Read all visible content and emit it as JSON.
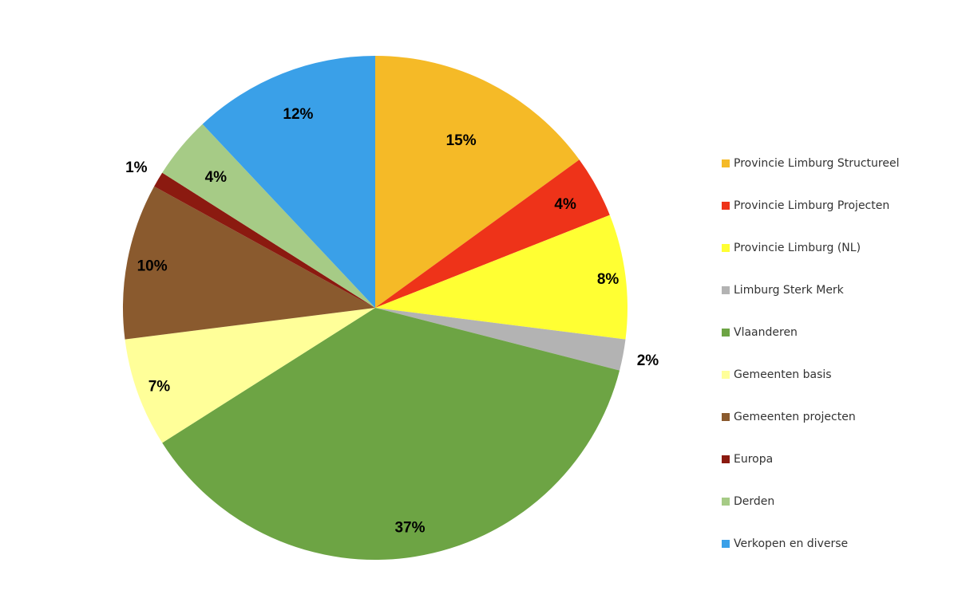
{
  "chart_data": {
    "type": "pie",
    "title": "",
    "legend_position": "right",
    "start_angle": "12 o'clock, clockwise",
    "slices": [
      {
        "name": "Provincie Limburg Structureel",
        "value": 15,
        "label": "15%",
        "color": "#F5BA27"
      },
      {
        "name": "Provincie Limburg Projecten",
        "value": 4,
        "label": "4%",
        "color": "#EE3319"
      },
      {
        "name": "Provincie Limburg (NL)",
        "value": 8,
        "label": "8%",
        "color": "#FFFF33"
      },
      {
        "name": "Limburg Sterk Merk",
        "value": 2,
        "label": "2%",
        "color": "#B3B3B3"
      },
      {
        "name": "Vlaanderen",
        "value": 37,
        "label": "37%",
        "color": "#6DA444"
      },
      {
        "name": "Gemeenten basis",
        "value": 7,
        "label": "7%",
        "color": "#FFFF99"
      },
      {
        "name": "Gemeenten projecten",
        "value": 10,
        "label": "10%",
        "color": "#8A5A2E"
      },
      {
        "name": "Europa",
        "value": 1,
        "label": "1%",
        "color": "#8B1A10"
      },
      {
        "name": "Derden",
        "value": 4,
        "label": "4%",
        "color": "#A6CB86"
      },
      {
        "name": "Verkopen en diverse",
        "value": 12,
        "label": "12%",
        "color": "#3AA0E8"
      }
    ]
  }
}
